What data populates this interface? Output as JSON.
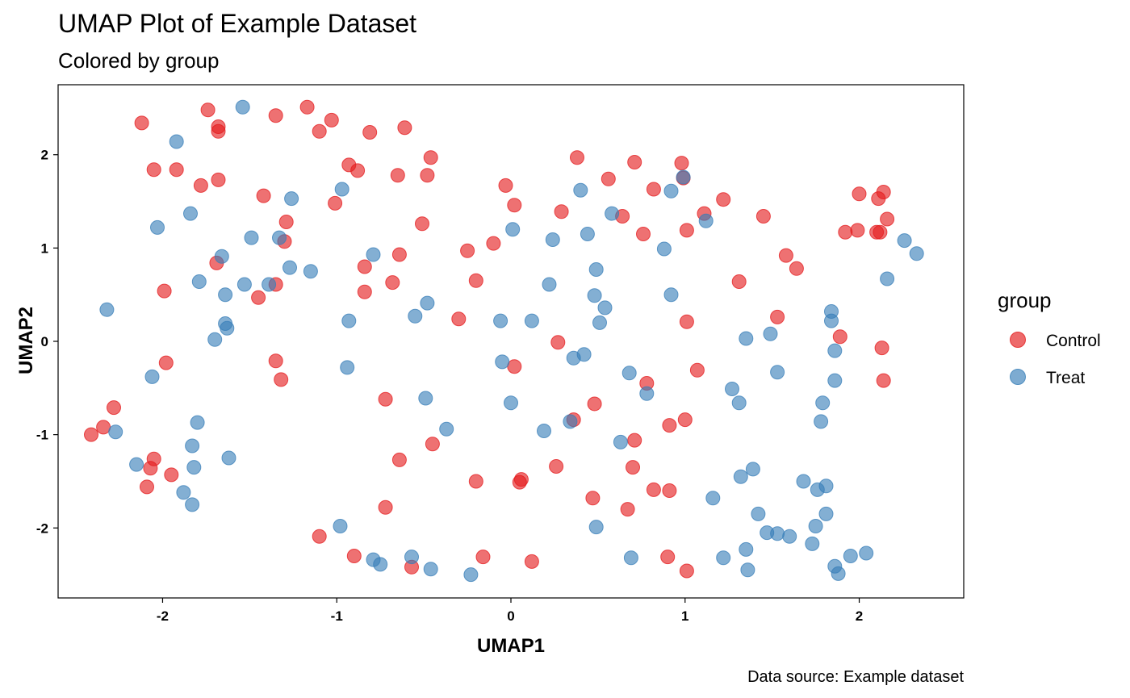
{
  "chart_data": {
    "type": "scatter",
    "title": "UMAP Plot of Example Dataset",
    "subtitle": "Colored by group",
    "xlabel": "UMAP1",
    "ylabel": "UMAP2",
    "caption": "Data source: Example dataset",
    "xlim": [
      -2.6,
      2.6
    ],
    "ylim": [
      -2.75,
      2.75
    ],
    "xticks": [
      -2,
      -1,
      0,
      1,
      2
    ],
    "yticks": [
      -2,
      -1,
      0,
      1,
      2
    ],
    "xtick_labels": [
      "-2",
      "-1",
      "0",
      "1",
      "2"
    ],
    "ytick_labels": [
      "-2",
      "-1",
      "0",
      "1",
      "2"
    ],
    "grid": false,
    "legend": {
      "title": "group",
      "position": "right"
    },
    "series": [
      {
        "name": "Control",
        "color": "#E41A1C",
        "points": [
          [
            -2.12,
            2.34
          ],
          [
            -1.74,
            2.48
          ],
          [
            -1.68,
            2.3
          ],
          [
            -1.68,
            2.25
          ],
          [
            -2.05,
            1.84
          ],
          [
            -1.92,
            1.84
          ],
          [
            -1.68,
            1.73
          ],
          [
            -1.78,
            1.67
          ],
          [
            -1.35,
            2.42
          ],
          [
            -1.17,
            2.51
          ],
          [
            -1.03,
            2.37
          ],
          [
            -1.1,
            2.25
          ],
          [
            -0.81,
            2.24
          ],
          [
            -0.61,
            2.29
          ],
          [
            -0.46,
            1.97
          ],
          [
            -0.93,
            1.89
          ],
          [
            -0.88,
            1.83
          ],
          [
            -0.65,
            1.78
          ],
          [
            -0.48,
            1.78
          ],
          [
            -1.42,
            1.56
          ],
          [
            -1.01,
            1.48
          ],
          [
            -1.29,
            1.28
          ],
          [
            -1.3,
            1.07
          ],
          [
            -0.51,
            1.26
          ],
          [
            -0.64,
            0.93
          ],
          [
            -0.84,
            0.8
          ],
          [
            -0.84,
            0.53
          ],
          [
            -0.68,
            0.63
          ],
          [
            -1.69,
            0.84
          ],
          [
            -1.99,
            0.54
          ],
          [
            -1.35,
            0.61
          ],
          [
            -1.45,
            0.47
          ],
          [
            -1.35,
            -0.21
          ],
          [
            -1.32,
            -0.41
          ],
          [
            -1.98,
            -0.23
          ],
          [
            -2.28,
            -0.71
          ],
          [
            -2.34,
            -0.92
          ],
          [
            -2.41,
            -1.0
          ],
          [
            -2.05,
            -1.26
          ],
          [
            -2.07,
            -1.36
          ],
          [
            -1.95,
            -1.43
          ],
          [
            -2.09,
            -1.56
          ],
          [
            -0.72,
            -0.62
          ],
          [
            -0.45,
            -1.1
          ],
          [
            -0.64,
            -1.27
          ],
          [
            -0.72,
            -1.78
          ],
          [
            -1.1,
            -2.09
          ],
          [
            -0.9,
            -2.3
          ],
          [
            -0.57,
            -2.42
          ],
          [
            -0.2,
            -1.5
          ],
          [
            -0.2,
            0.65
          ],
          [
            -0.25,
            0.97
          ],
          [
            -0.1,
            1.05
          ],
          [
            -0.03,
            1.67
          ],
          [
            0.02,
            1.46
          ],
          [
            0.29,
            1.39
          ],
          [
            0.38,
            1.97
          ],
          [
            0.56,
            1.74
          ],
          [
            0.64,
            1.34
          ],
          [
            0.71,
            1.92
          ],
          [
            0.82,
            1.63
          ],
          [
            0.76,
            1.15
          ],
          [
            0.98,
            1.91
          ],
          [
            0.99,
            1.75
          ],
          [
            1.01,
            1.19
          ],
          [
            1.11,
            1.37
          ],
          [
            1.22,
            1.52
          ],
          [
            1.45,
            1.34
          ],
          [
            1.31,
            0.64
          ],
          [
            1.58,
            0.92
          ],
          [
            1.64,
            0.78
          ],
          [
            1.53,
            0.26
          ],
          [
            1.01,
            0.21
          ],
          [
            1.07,
            -0.31
          ],
          [
            0.78,
            -0.45
          ],
          [
            0.27,
            -0.01
          ],
          [
            -0.3,
            0.24
          ],
          [
            0.02,
            -0.27
          ],
          [
            0.06,
            -1.48
          ],
          [
            0.05,
            -1.51
          ],
          [
            0.36,
            -0.84
          ],
          [
            0.48,
            -0.67
          ],
          [
            0.71,
            -1.06
          ],
          [
            0.7,
            -1.35
          ],
          [
            0.91,
            -0.9
          ],
          [
            1.0,
            -0.84
          ],
          [
            0.26,
            -1.34
          ],
          [
            0.82,
            -1.59
          ],
          [
            0.91,
            -1.6
          ],
          [
            0.47,
            -1.68
          ],
          [
            0.67,
            -1.8
          ],
          [
            0.12,
            -2.36
          ],
          [
            -0.16,
            -2.31
          ],
          [
            0.9,
            -2.31
          ],
          [
            1.01,
            -2.46
          ],
          [
            1.92,
            1.17
          ],
          [
            1.99,
            1.19
          ],
          [
            2.1,
            1.17
          ],
          [
            2.12,
            1.17
          ],
          [
            2.11,
            1.53
          ],
          [
            2.0,
            1.58
          ],
          [
            2.14,
            1.6
          ],
          [
            2.16,
            1.31
          ],
          [
            1.89,
            0.05
          ],
          [
            2.13,
            -0.07
          ],
          [
            2.14,
            -0.42
          ]
        ]
      },
      {
        "name": "Treat",
        "color": "#377EB8",
        "points": [
          [
            -1.54,
            2.51
          ],
          [
            -1.92,
            2.14
          ],
          [
            -1.84,
            1.37
          ],
          [
            -2.03,
            1.22
          ],
          [
            -1.26,
            1.53
          ],
          [
            -0.97,
            1.63
          ],
          [
            -1.49,
            1.11
          ],
          [
            -1.33,
            1.11
          ],
          [
            -1.27,
            0.79
          ],
          [
            -1.15,
            0.75
          ],
          [
            -1.66,
            0.91
          ],
          [
            -1.79,
            0.64
          ],
          [
            -1.53,
            0.61
          ],
          [
            -1.39,
            0.61
          ],
          [
            -1.64,
            0.5
          ],
          [
            -0.79,
            0.93
          ],
          [
            -2.32,
            0.34
          ],
          [
            -1.64,
            0.19
          ],
          [
            -1.63,
            0.14
          ],
          [
            -1.7,
            0.02
          ],
          [
            -0.93,
            0.22
          ],
          [
            -0.55,
            0.27
          ],
          [
            -0.48,
            0.41
          ],
          [
            -0.06,
            0.22
          ],
          [
            0.12,
            0.22
          ],
          [
            -0.05,
            -0.22
          ],
          [
            -0.94,
            -0.28
          ],
          [
            -2.06,
            -0.38
          ],
          [
            -0.49,
            -0.61
          ],
          [
            -0.37,
            -0.94
          ],
          [
            -2.27,
            -0.97
          ],
          [
            -1.8,
            -0.87
          ],
          [
            -1.83,
            -1.12
          ],
          [
            -1.62,
            -1.25
          ],
          [
            -2.15,
            -1.32
          ],
          [
            -1.82,
            -1.35
          ],
          [
            -1.88,
            -1.62
          ],
          [
            -1.83,
            -1.75
          ],
          [
            0.0,
            -0.66
          ],
          [
            0.19,
            -0.96
          ],
          [
            0.34,
            -0.86
          ],
          [
            0.36,
            -0.18
          ],
          [
            0.42,
            -0.14
          ],
          [
            0.63,
            -1.08
          ],
          [
            0.68,
            -0.34
          ],
          [
            0.78,
            -0.56
          ],
          [
            -0.98,
            -1.98
          ],
          [
            -0.79,
            -2.34
          ],
          [
            -0.75,
            -2.39
          ],
          [
            -0.57,
            -2.31
          ],
          [
            -0.46,
            -2.44
          ],
          [
            -0.23,
            -2.5
          ],
          [
            0.49,
            -1.99
          ],
          [
            0.69,
            -2.32
          ],
          [
            0.01,
            1.2
          ],
          [
            0.24,
            1.09
          ],
          [
            0.22,
            0.61
          ],
          [
            0.4,
            1.62
          ],
          [
            0.44,
            1.15
          ],
          [
            0.49,
            0.77
          ],
          [
            0.48,
            0.49
          ],
          [
            0.54,
            0.36
          ],
          [
            0.51,
            0.2
          ],
          [
            0.58,
            1.37
          ],
          [
            0.88,
            0.99
          ],
          [
            0.92,
            0.5
          ],
          [
            0.92,
            1.61
          ],
          [
            0.99,
            1.76
          ],
          [
            1.12,
            1.29
          ],
          [
            1.16,
            -1.68
          ],
          [
            1.22,
            -2.32
          ],
          [
            1.27,
            -0.51
          ],
          [
            1.31,
            -0.66
          ],
          [
            1.32,
            -1.45
          ],
          [
            1.35,
            -2.23
          ],
          [
            1.36,
            -2.45
          ],
          [
            1.35,
            0.03
          ],
          [
            1.39,
            -1.37
          ],
          [
            1.42,
            -1.85
          ],
          [
            1.47,
            -2.05
          ],
          [
            1.49,
            0.08
          ],
          [
            1.53,
            -0.33
          ],
          [
            1.53,
            -2.06
          ],
          [
            1.6,
            -2.09
          ],
          [
            1.68,
            -1.5
          ],
          [
            1.73,
            -2.17
          ],
          [
            1.75,
            -1.98
          ],
          [
            1.76,
            -1.59
          ],
          [
            1.78,
            -0.86
          ],
          [
            1.79,
            -0.66
          ],
          [
            1.81,
            -1.55
          ],
          [
            1.81,
            -1.85
          ],
          [
            1.84,
            0.32
          ],
          [
            1.84,
            0.22
          ],
          [
            1.86,
            -0.1
          ],
          [
            1.86,
            -0.42
          ],
          [
            1.86,
            -2.41
          ],
          [
            1.88,
            -2.49
          ],
          [
            1.95,
            -2.3
          ],
          [
            2.04,
            -2.27
          ],
          [
            2.26,
            1.08
          ],
          [
            2.33,
            0.94
          ],
          [
            2.16,
            0.67
          ]
        ]
      }
    ]
  }
}
